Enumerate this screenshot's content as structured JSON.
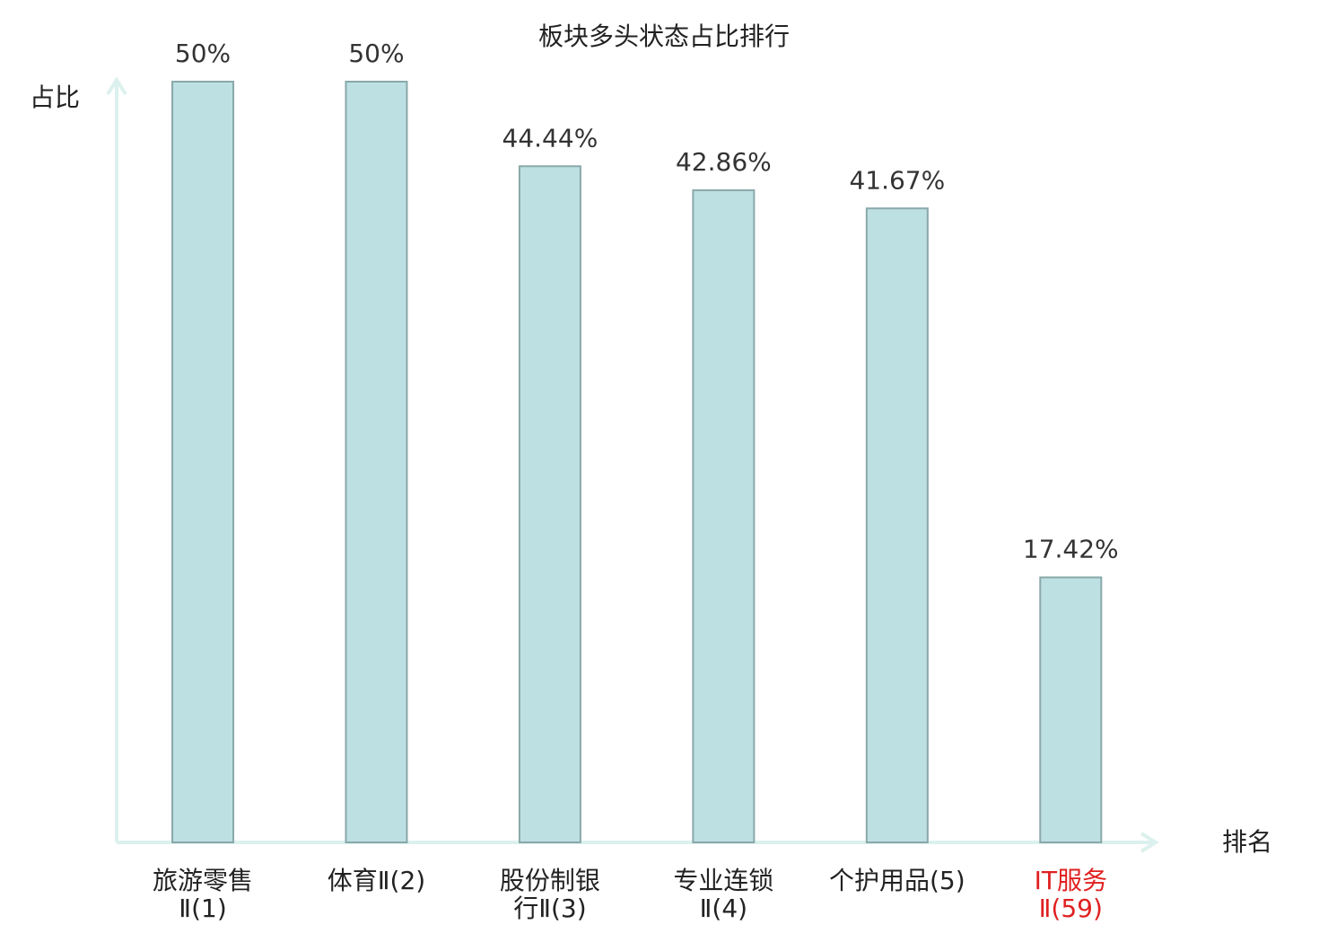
{
  "chart_data": {
    "type": "bar",
    "title": "板块多头状态占比排行",
    "ylabel": "占比",
    "xlabel": "排名",
    "categories": [
      [
        "旅游零售",
        "Ⅱ(1)"
      ],
      [
        "体育Ⅱ(2)"
      ],
      [
        "股份制银",
        "行Ⅱ(3)"
      ],
      [
        "专业连锁",
        "Ⅱ(4)"
      ],
      [
        "个护用品(5)"
      ],
      [
        "IT服务",
        "Ⅱ(59)"
      ]
    ],
    "label_colors": [
      "#222222",
      "#222222",
      "#222222",
      "#222222",
      "#222222",
      "#e02020"
    ],
    "values": [
      50,
      50,
      44.44,
      42.86,
      41.67,
      17.42
    ],
    "value_labels": [
      "50%",
      "50%",
      "44.44%",
      "42.86%",
      "41.67%",
      "17.42%"
    ],
    "color": "#bde0e3",
    "edge_color": "#8aa8aa",
    "axis_color": "#dcf1ee",
    "ylim": [
      0,
      50
    ]
  }
}
